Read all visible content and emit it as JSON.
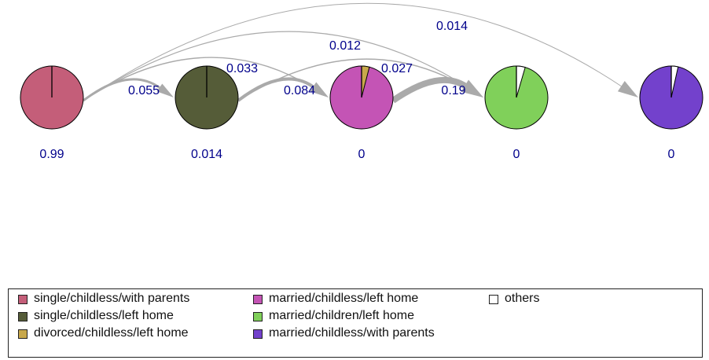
{
  "states": [
    {
      "id": "s1",
      "label": "single/childless/with parents",
      "color": "#c45e79",
      "prob": "0.99",
      "slices": []
    },
    {
      "id": "s2",
      "label": "single/childless/left home",
      "color": "#555c38",
      "prob": "0.014",
      "slices": []
    },
    {
      "id": "s3",
      "label": "married/childless/left home",
      "color": "#c454b5",
      "prob": "0",
      "slices": [
        {
          "color": "#c8a84b",
          "frac": 0.04
        }
      ]
    },
    {
      "id": "s4",
      "label": "married/children/left home",
      "color": "#80d05a",
      "prob": "0",
      "slices": [
        {
          "color": "#ffffff",
          "frac": 0.045
        }
      ]
    },
    {
      "id": "s5",
      "label": "married/childless/with parents",
      "color": "#7341cc",
      "prob": "0",
      "slices": [
        {
          "color": "#ffffff",
          "frac": 0.035
        }
      ]
    }
  ],
  "transitions": [
    {
      "from": 0,
      "to": 1,
      "value": "0.055"
    },
    {
      "from": 1,
      "to": 2,
      "value": "0.084"
    },
    {
      "from": 2,
      "to": 3,
      "value": "0.19"
    },
    {
      "from": 0,
      "to": 2,
      "value": "0.033"
    },
    {
      "from": 1,
      "to": 3,
      "value": "0.027"
    },
    {
      "from": 0,
      "to": 3,
      "value": "0.012"
    },
    {
      "from": 0,
      "to": 4,
      "value": "0.014"
    }
  ],
  "legend": {
    "items": [
      {
        "label": "single/childless/with parents",
        "color": "#c45e79"
      },
      {
        "label": "single/childless/left home",
        "color": "#555c38"
      },
      {
        "label": "divorced/childless/left home",
        "color": "#c8a84b"
      },
      {
        "label": "married/childless/left home",
        "color": "#c454b5"
      },
      {
        "label": "married/children/left home",
        "color": "#80d05a"
      },
      {
        "label": "married/childless/with parents",
        "color": "#7341cc"
      },
      {
        "label": "others",
        "color": "#ffffff"
      }
    ]
  },
  "colors": {
    "edge": "#aaaaaa",
    "value_text": "#00008b"
  }
}
